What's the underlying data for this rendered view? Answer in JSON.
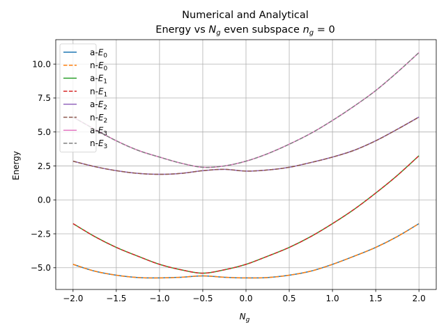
{
  "chart_data": {
    "type": "line",
    "title_line1": "Numerical and Analytical",
    "title_line2_text": "Energy vs ",
    "title_line2_var": "N",
    "title_line2_var_sub": "g",
    "title_line2_mid": " even subspace ",
    "title_line2_eq_var": "n",
    "title_line2_eq_sub": "g",
    "title_line2_eq_rhs": " = 0",
    "xlabel": "N",
    "xlabel_sub": "g",
    "ylabel": "Energy",
    "xlim": [
      -2.2,
      2.2
    ],
    "ylim": [
      -6.6,
      11.8
    ],
    "xticks": [
      -2.0,
      -1.5,
      -1.0,
      -0.5,
      0.0,
      0.5,
      1.0,
      1.5,
      2.0
    ],
    "xtick_labels": [
      "−2.0",
      "−1.5",
      "−1.0",
      "−0.5",
      "0.0",
      "0.5",
      "1.0",
      "1.5",
      "2.0"
    ],
    "yticks": [
      -5.0,
      -2.5,
      0.0,
      2.5,
      5.0,
      7.5,
      10.0
    ],
    "ytick_labels": [
      "−5.0",
      "−2.5",
      "0.0",
      "2.5",
      "5.0",
      "7.5",
      "10.0"
    ],
    "grid": true,
    "legend_position": "upper-left",
    "x": [
      -2.0,
      -1.75,
      -1.5,
      -1.25,
      -1.0,
      -0.75,
      -0.5,
      -0.25,
      0.0,
      0.25,
      0.5,
      0.75,
      1.0,
      1.25,
      1.5,
      1.75,
      2.0
    ],
    "series": [
      {
        "name": "a-E",
        "sub": "0",
        "color": "#1f77b4",
        "dash": "solid",
        "values": [
          -4.75,
          -5.25,
          -5.55,
          -5.72,
          -5.75,
          -5.7,
          -5.6,
          -5.7,
          -5.75,
          -5.72,
          -5.55,
          -5.25,
          -4.75,
          -4.15,
          -3.5,
          -2.7,
          -1.75
        ]
      },
      {
        "name": "n-E",
        "sub": "0",
        "color": "#ff7f0e",
        "dash": "dashed",
        "values": [
          -4.75,
          -5.25,
          -5.55,
          -5.72,
          -5.75,
          -5.7,
          -5.6,
          -5.7,
          -5.75,
          -5.72,
          -5.55,
          -5.25,
          -4.75,
          -4.15,
          -3.5,
          -2.7,
          -1.75
        ]
      },
      {
        "name": "a-E",
        "sub": "1",
        "color": "#2ca02c",
        "dash": "solid",
        "values": [
          -1.75,
          -2.7,
          -3.5,
          -4.15,
          -4.75,
          -5.15,
          -5.4,
          -5.15,
          -4.75,
          -4.15,
          -3.5,
          -2.7,
          -1.75,
          -0.7,
          0.5,
          1.8,
          3.25
        ]
      },
      {
        "name": "n-E",
        "sub": "1",
        "color": "#d62728",
        "dash": "dashed",
        "values": [
          -1.75,
          -2.7,
          -3.5,
          -4.15,
          -4.75,
          -5.15,
          -5.4,
          -5.15,
          -4.75,
          -4.15,
          -3.5,
          -2.7,
          -1.75,
          -0.7,
          0.5,
          1.8,
          3.25
        ]
      },
      {
        "name": "a-E",
        "sub": "2",
        "color": "#9467bd",
        "dash": "solid",
        "values": [
          2.85,
          2.45,
          2.15,
          1.95,
          1.88,
          1.95,
          2.15,
          2.25,
          2.12,
          2.2,
          2.4,
          2.75,
          3.15,
          3.65,
          4.35,
          5.2,
          6.1
        ]
      },
      {
        "name": "n-E",
        "sub": "2",
        "color": "#8c564b",
        "dash": "dashed",
        "values": [
          2.85,
          2.45,
          2.15,
          1.95,
          1.88,
          1.95,
          2.15,
          2.25,
          2.12,
          2.2,
          2.4,
          2.75,
          3.15,
          3.65,
          4.35,
          5.2,
          6.1
        ]
      },
      {
        "name": "a-E",
        "sub": "3",
        "color": "#e377c2",
        "dash": "solid",
        "values": [
          6.1,
          5.2,
          4.35,
          3.65,
          3.15,
          2.7,
          2.4,
          2.5,
          2.85,
          3.4,
          4.1,
          4.9,
          5.85,
          6.9,
          8.05,
          9.4,
          10.85
        ]
      },
      {
        "name": "n-E",
        "sub": "3",
        "color": "#7f7f7f",
        "dash": "dashed",
        "values": [
          6.1,
          5.2,
          4.35,
          3.65,
          3.15,
          2.7,
          2.4,
          2.5,
          2.85,
          3.4,
          4.1,
          4.9,
          5.85,
          6.9,
          8.05,
          9.4,
          10.85
        ]
      }
    ]
  }
}
